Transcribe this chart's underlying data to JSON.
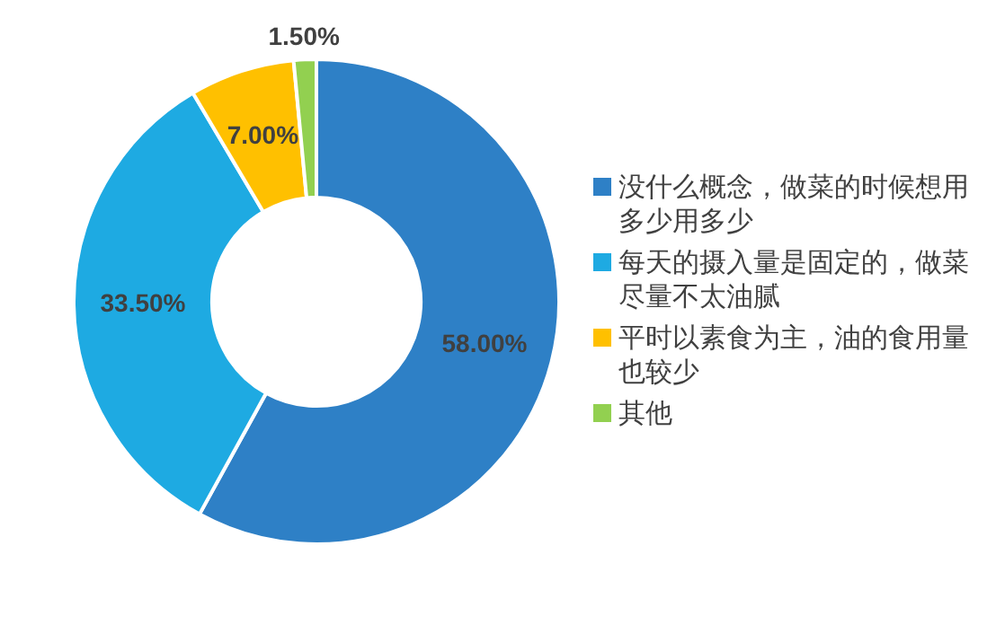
{
  "chart_data": {
    "type": "donut",
    "categories": [
      "没什么概念，做菜的时候想用多少用多少",
      "每天的摄入量是固定的，做菜尽量不太油腻",
      "平时以素食为主，油的食用量也较少",
      "其他"
    ],
    "values": [
      58,
      33.5,
      7,
      1.5
    ],
    "colors": [
      "#2e80c6",
      "#1eaae2",
      "#ffc000",
      "#92d050"
    ],
    "value_labels": [
      "58.00%",
      "33.50%",
      "7.00%",
      "1.50%"
    ],
    "legend": "right"
  }
}
